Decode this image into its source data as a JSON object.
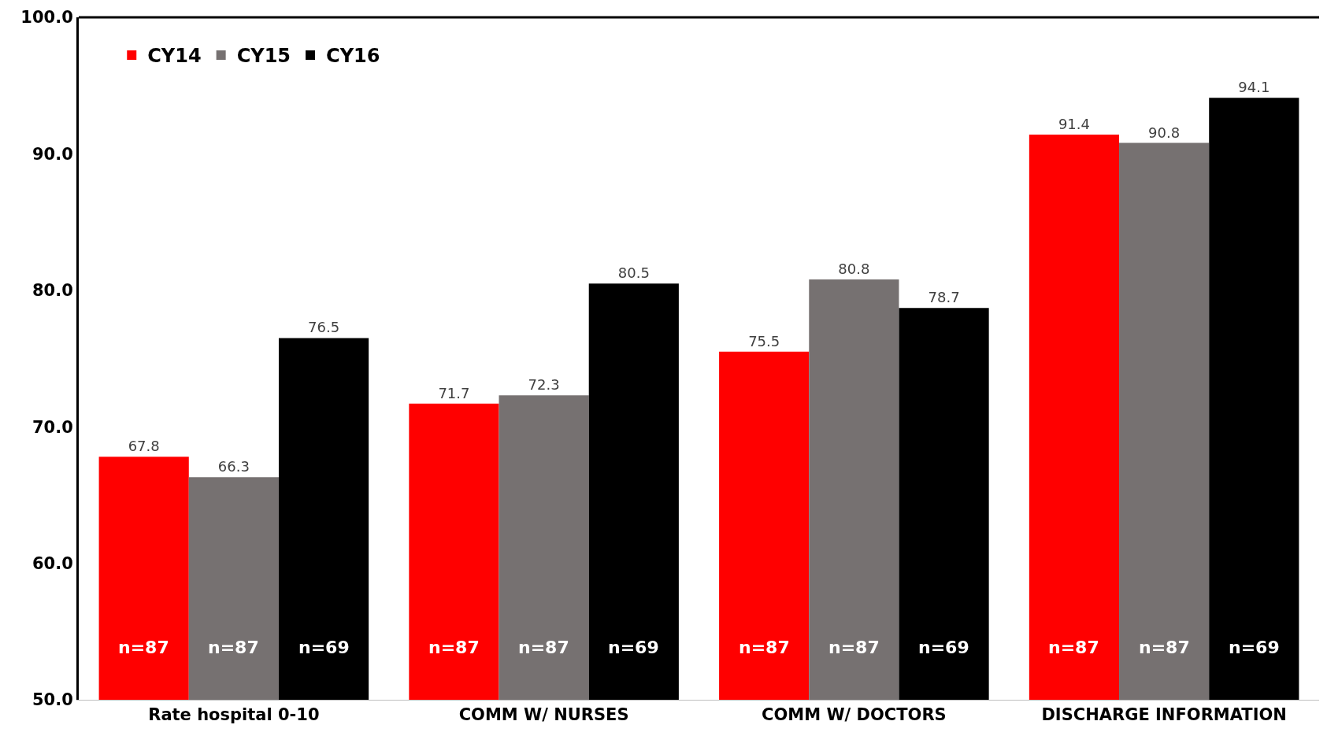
{
  "chart_data": {
    "type": "bar",
    "categories": [
      "Rate hospital 0-10",
      "COMM W/ NURSES",
      "COMM W/ DOCTORS",
      "DISCHARGE INFORMATION"
    ],
    "series": [
      {
        "name": "CY14",
        "color": "#ff0000",
        "values": [
          67.8,
          71.7,
          75.5,
          91.4
        ]
      },
      {
        "name": "CY15",
        "color": "#767171",
        "values": [
          66.3,
          72.3,
          80.8,
          90.8
        ]
      },
      {
        "name": "CY16",
        "color": "#000000",
        "values": [
          76.5,
          80.5,
          78.7,
          94.1
        ]
      }
    ],
    "ylim": [
      50,
      100
    ],
    "yticks": [
      {
        "value": 50,
        "label": "50.0"
      },
      {
        "value": 60,
        "label": "60.0"
      },
      {
        "value": 70,
        "label": "70.0"
      },
      {
        "value": 80,
        "label": "80.0"
      },
      {
        "value": 90,
        "label": "90.0"
      },
      {
        "value": 100,
        "label": "100.0"
      }
    ],
    "data_labels": true,
    "legend": "top left",
    "annotations": [
      "n=87",
      "n=87",
      "n=69",
      "n=87",
      "n=87",
      "n=69",
      "n=87",
      "n=87",
      "n=69",
      "n=87",
      "n=87",
      "n=69"
    ]
  }
}
